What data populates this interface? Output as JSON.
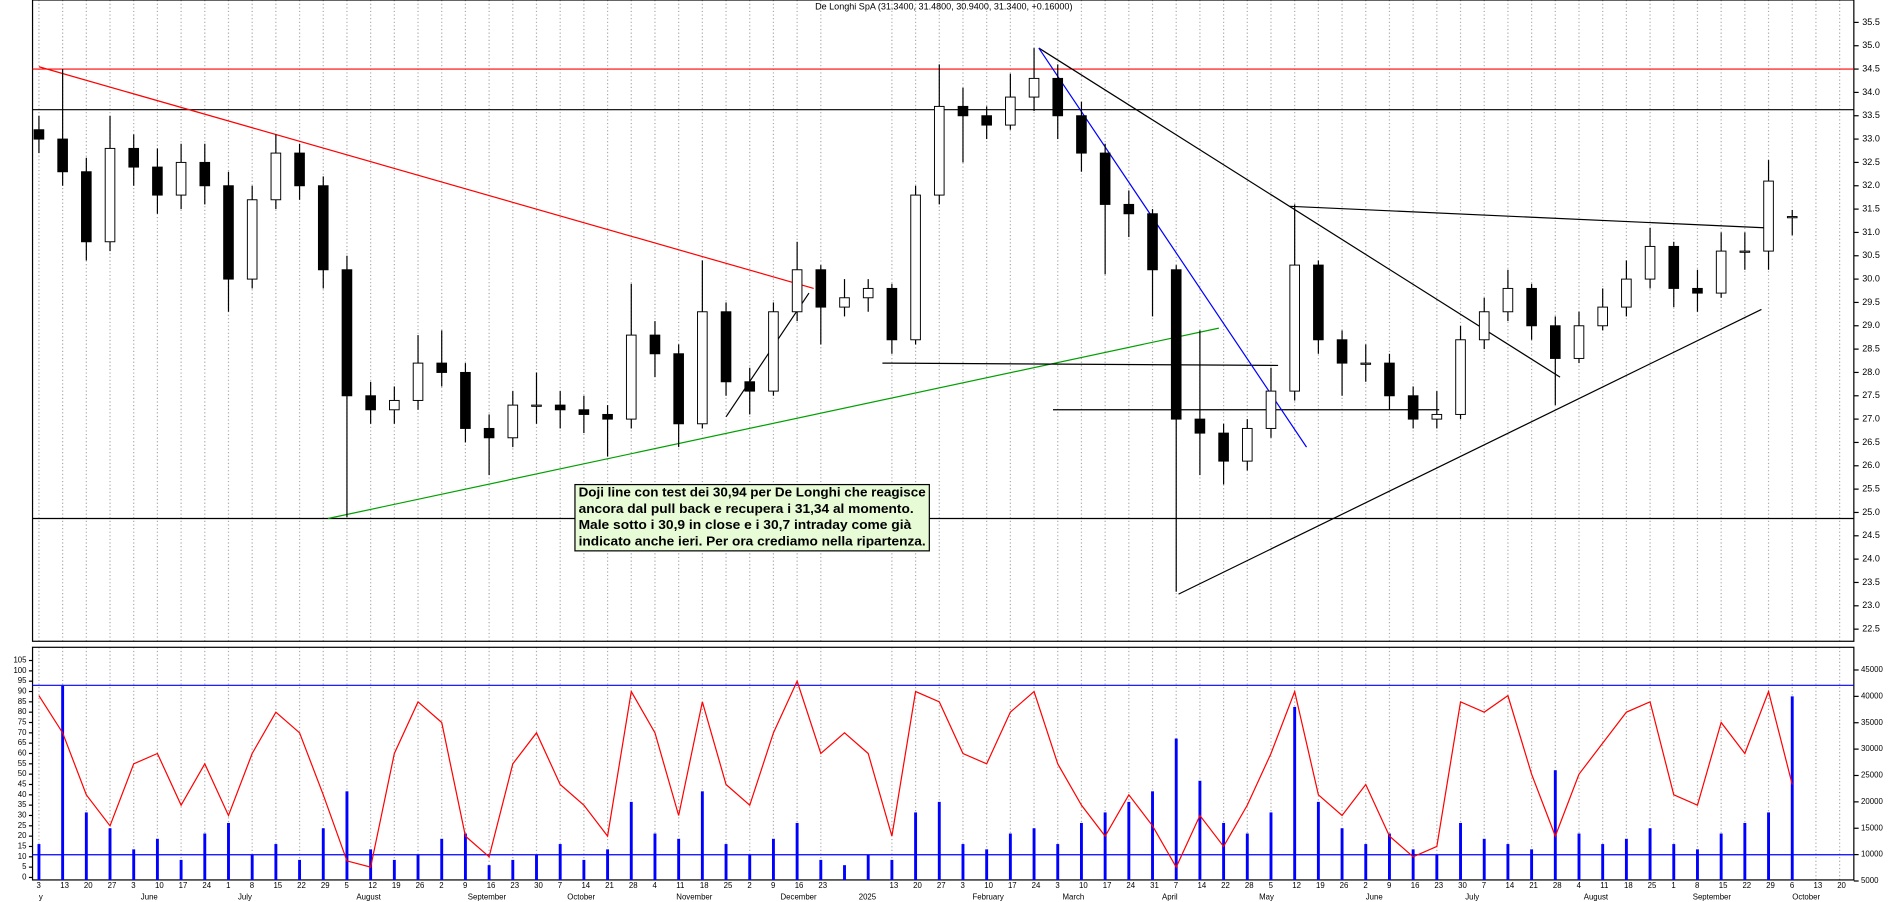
{
  "chart_data": [
    {
      "type": "candlestick",
      "title": "De Longhi SpA (31.3400, 31.4800, 30.9400, 31.3400, +0.16000)",
      "x": [
        0,
        1,
        2,
        3,
        4,
        5,
        6,
        7,
        8,
        9,
        10,
        11,
        12,
        13,
        14,
        15,
        16,
        17,
        18,
        19,
        20,
        21,
        22,
        23,
        24,
        25,
        26,
        27,
        28,
        29,
        30,
        31,
        32,
        33,
        34,
        35,
        36,
        37,
        38,
        39,
        40,
        41,
        42,
        43,
        44,
        45,
        46,
        47,
        48,
        49,
        50,
        51,
        52,
        53,
        54,
        55,
        56,
        57,
        58,
        59,
        60,
        61,
        62,
        63,
        64,
        65,
        66,
        67,
        68,
        69,
        70,
        71,
        72,
        73,
        74
      ],
      "open": [
        33.2,
        33.0,
        32.3,
        30.8,
        32.8,
        32.4,
        31.8,
        32.5,
        32.0,
        30.0,
        31.7,
        32.7,
        32.0,
        30.2,
        27.5,
        27.2,
        27.4,
        28.2,
        28.0,
        26.8,
        26.6,
        27.3,
        27.3,
        27.2,
        27.1,
        27.0,
        28.8,
        28.4,
        26.9,
        29.3,
        27.8,
        27.6,
        29.3,
        30.2,
        29.4,
        29.6,
        29.8,
        28.7,
        31.8,
        33.7,
        33.5,
        33.3,
        33.9,
        34.3,
        33.5,
        32.7,
        31.6,
        31.4,
        30.2,
        27.0,
        26.7,
        26.1,
        26.8,
        27.6,
        30.3,
        28.7,
        28.2,
        28.2,
        27.5,
        27.0,
        27.1,
        28.7,
        29.3,
        29.8,
        29.0,
        28.3,
        29.0,
        29.4,
        30.0,
        30.7,
        29.8,
        29.7,
        30.6,
        30.6,
        31.34
      ],
      "high": [
        33.5,
        34.5,
        32.6,
        33.5,
        33.1,
        32.8,
        32.9,
        32.9,
        32.3,
        32.0,
        33.1,
        32.9,
        32.2,
        30.5,
        27.8,
        27.7,
        28.8,
        28.9,
        28.2,
        27.1,
        27.6,
        28.0,
        27.6,
        27.5,
        27.3,
        29.9,
        29.1,
        28.6,
        30.4,
        29.5,
        28.1,
        29.5,
        30.8,
        30.3,
        30.0,
        30.0,
        29.9,
        32.0,
        34.6,
        34.1,
        33.7,
        34.4,
        34.95,
        34.6,
        33.8,
        32.9,
        31.9,
        31.5,
        30.3,
        28.9,
        26.9,
        27.0,
        28.1,
        31.6,
        30.4,
        28.9,
        28.6,
        28.4,
        27.7,
        27.6,
        29.0,
        29.6,
        30.2,
        29.9,
        29.2,
        29.3,
        29.8,
        30.4,
        31.1,
        30.8,
        30.2,
        31.0,
        31.0,
        32.55,
        31.48
      ],
      "low": [
        32.7,
        32.0,
        30.4,
        30.6,
        32.0,
        31.4,
        31.5,
        31.6,
        29.3,
        29.8,
        31.5,
        31.7,
        29.8,
        24.9,
        26.9,
        26.9,
        27.2,
        27.7,
        26.5,
        25.8,
        26.4,
        26.9,
        26.8,
        26.7,
        26.2,
        26.8,
        27.9,
        26.4,
        26.8,
        27.5,
        27.1,
        27.5,
        29.1,
        28.6,
        29.2,
        29.3,
        28.4,
        28.6,
        31.6,
        32.5,
        33.0,
        33.2,
        33.6,
        33.0,
        32.3,
        30.1,
        30.9,
        29.2,
        23.3,
        25.8,
        25.6,
        25.9,
        26.6,
        27.4,
        28.4,
        27.5,
        27.8,
        27.2,
        26.8,
        26.8,
        27.0,
        28.5,
        29.1,
        28.7,
        27.3,
        28.2,
        28.9,
        29.2,
        29.8,
        29.4,
        29.3,
        29.6,
        30.2,
        30.2,
        30.94
      ],
      "close": [
        33.0,
        32.3,
        30.8,
        32.8,
        32.4,
        31.8,
        32.5,
        32.0,
        30.0,
        31.7,
        32.7,
        32.0,
        30.2,
        27.5,
        27.2,
        27.4,
        28.2,
        28.0,
        26.8,
        26.6,
        27.3,
        27.3,
        27.2,
        27.1,
        27.0,
        28.8,
        28.4,
        26.9,
        29.3,
        27.8,
        27.6,
        29.3,
        30.2,
        29.4,
        29.6,
        29.8,
        28.7,
        31.8,
        33.7,
        33.5,
        33.3,
        33.9,
        34.3,
        33.5,
        32.7,
        31.6,
        31.4,
        30.2,
        27.0,
        26.7,
        26.1,
        26.8,
        27.6,
        30.3,
        28.7,
        28.2,
        28.2,
        27.5,
        27.0,
        27.1,
        28.7,
        29.3,
        29.8,
        29.0,
        28.3,
        29.0,
        29.4,
        30.0,
        30.7,
        29.8,
        29.7,
        30.6,
        30.6,
        32.1,
        31.34
      ],
      "up_color": "#ffffff",
      "down_color": "#000000",
      "xlim": [
        -0.27,
        76.6
      ],
      "ylim": [
        22.24,
        35.98
      ],
      "yticks": [
        22.5,
        {
          "value": 23,
          "label": "23.0"
        },
        23.5,
        {
          "value": 24,
          "label": "24.0"
        },
        24.5,
        {
          "value": 25,
          "label": "25.0"
        },
        25.5,
        {
          "value": 26,
          "label": "26.0"
        },
        26.5,
        {
          "value": 27,
          "label": "27.0"
        },
        27.5,
        {
          "value": 28,
          "label": "28.0"
        },
        28.5,
        {
          "value": 29,
          "label": "29.0"
        },
        29.5,
        {
          "value": 30,
          "label": "30.0"
        },
        30.5,
        {
          "value": 31,
          "label": "31.0"
        },
        31.5,
        {
          "value": 32,
          "label": "32.0"
        },
        32.5,
        {
          "value": 33,
          "label": "33.0"
        },
        33.5,
        {
          "value": 34,
          "label": "34.0"
        },
        34.5,
        {
          "value": 35,
          "label": "35.0"
        },
        35.5
      ],
      "hlines": [
        {
          "value": 34.5,
          "color": "#ff0000"
        },
        {
          "value": 33.63,
          "color": "#000000"
        },
        {
          "value": 24.87,
          "color": "#000000"
        }
      ],
      "trendlines": [
        {
          "x": [
            0,
            32.7
          ],
          "y": [
            34.55,
            29.8
          ],
          "color": "#ff0000"
        },
        {
          "x": [
            12.2,
            49.8
          ],
          "y": [
            24.87,
            28.95
          ],
          "color": "#00a000"
        },
        {
          "x": [
            29.0,
            32.5
          ],
          "y": [
            27.05,
            29.7
          ],
          "color": "#000000"
        },
        {
          "x": [
            35.6,
            52.3
          ],
          "y": [
            28.2,
            28.15
          ],
          "color": "#000000"
        },
        {
          "x": [
            42.8,
            59.1
          ],
          "y": [
            27.2,
            27.2
          ],
          "color": "#000000"
        },
        {
          "x": [
            42.2,
            64.2
          ],
          "y": [
            34.95,
            27.9
          ],
          "color": "#000000"
        },
        {
          "x": [
            42.2,
            53.5
          ],
          "y": [
            34.95,
            26.4
          ],
          "color": "#0000ff"
        },
        {
          "x": [
            52.8,
            72.8
          ],
          "y": [
            31.56,
            31.1
          ],
          "color": "#000000"
        },
        {
          "x": [
            48.1,
            72.7
          ],
          "y": [
            23.25,
            29.35
          ],
          "color": "#000000"
        }
      ],
      "annotation": [
        "Doji line con test dei 30,94 per De Longhi che reagisce",
        "ancora dal pull back e recupera i 31,34 al momento.",
        "Male sotto i 30,9 in close e i 30,7 intraday come già",
        "indicato anche ieri. Per ora crediamo nella ripartenza."
      ]
    },
    {
      "type": "line",
      "x": [
        0,
        1,
        2,
        3,
        4,
        5,
        6,
        7,
        8,
        9,
        10,
        11,
        12,
        13,
        14,
        15,
        16,
        17,
        18,
        19,
        20,
        21,
        22,
        23,
        24,
        25,
        26,
        27,
        28,
        29,
        30,
        31,
        32,
        33,
        34,
        35,
        36,
        37,
        38,
        39,
        40,
        41,
        42,
        43,
        44,
        45,
        46,
        47,
        48,
        49,
        50,
        51,
        52,
        53,
        54,
        55,
        56,
        57,
        58,
        59,
        60,
        61,
        62,
        63,
        64,
        65,
        66,
        67,
        68,
        69,
        70,
        71,
        72,
        73,
        74
      ],
      "values": [
        88,
        70,
        40,
        25,
        55,
        60,
        35,
        55,
        30,
        60,
        80,
        70,
        40,
        8,
        5,
        60,
        85,
        75,
        20,
        10,
        55,
        70,
        45,
        35,
        20,
        90,
        70,
        30,
        85,
        45,
        35,
        70,
        95,
        60,
        70,
        60,
        20,
        90,
        85,
        60,
        55,
        80,
        90,
        55,
        35,
        20,
        40,
        25,
        5,
        30,
        15,
        35,
        60,
        90,
        40,
        30,
        45,
        20,
        10,
        15,
        85,
        80,
        88,
        50,
        20,
        50,
        65,
        80,
        85,
        40,
        35,
        75,
        60,
        90,
        45
      ],
      "color": "#ff0000",
      "bars": {
        "axis": "y2",
        "color": "#0000ff",
        "values": [
          12000,
          42000,
          18000,
          15000,
          11000,
          13000,
          9000,
          14000,
          16000,
          10000,
          12000,
          9000,
          15000,
          22000,
          11000,
          9000,
          10000,
          13000,
          14000,
          8000,
          9000,
          10000,
          12000,
          9000,
          11000,
          20000,
          14000,
          13000,
          22000,
          12000,
          10000,
          13000,
          16000,
          9000,
          8000,
          10000,
          9000,
          18000,
          20000,
          12000,
          11000,
          14000,
          15000,
          12000,
          16000,
          18000,
          20000,
          22000,
          32000,
          24000,
          16000,
          14000,
          18000,
          38000,
          20000,
          15000,
          12000,
          14000,
          11000,
          10000,
          16000,
          13000,
          12000,
          11000,
          26000,
          14000,
          12000,
          13000,
          15000,
          12000,
          11000,
          14000,
          16000,
          18000,
          40000
        ]
      },
      "levels": [
        93,
        11
      ],
      "level_color": "#0000ff",
      "xlim": [
        -0.27,
        76.6
      ],
      "ylim": [
        -1.2,
        111.4
      ],
      "yticks": [
        0,
        5,
        10,
        15,
        20,
        25,
        30,
        35,
        40,
        45,
        50,
        55,
        60,
        65,
        70,
        75,
        80,
        85,
        90,
        95,
        100,
        105
      ],
      "y2lim": [
        5200,
        49300
      ],
      "y2ticks": [
        5000,
        10000,
        15000,
        20000,
        25000,
        30000,
        35000,
        40000,
        45000
      ],
      "grid": true,
      "xticks": [
        {
          "value": 0,
          "label": "3"
        },
        {
          "value": 1,
          "label": "13"
        },
        {
          "value": 2,
          "label": "20"
        },
        {
          "value": 3,
          "label": "27"
        },
        {
          "value": 4,
          "label": "3"
        },
        {
          "value": 5,
          "label": "10"
        },
        {
          "value": 6,
          "label": "17"
        },
        {
          "value": 7,
          "label": "24"
        },
        {
          "value": 8,
          "label": "1"
        },
        {
          "value": 9,
          "label": "8"
        },
        {
          "value": 10,
          "label": "15"
        },
        {
          "value": 11,
          "label": "22"
        },
        {
          "value": 12,
          "label": "29"
        },
        {
          "value": 13,
          "label": "5"
        },
        {
          "value": 14,
          "label": "12"
        },
        {
          "value": 15,
          "label": "19"
        },
        {
          "value": 16,
          "label": "26"
        },
        {
          "value": 17,
          "label": "2"
        },
        {
          "value": 18,
          "label": "9"
        },
        {
          "value": 19,
          "label": "16"
        },
        {
          "value": 20,
          "label": "23"
        },
        {
          "value": 21,
          "label": "30"
        },
        {
          "value": 22,
          "label": "7"
        },
        {
          "value": 23,
          "label": "14"
        },
        {
          "value": 24,
          "label": "21"
        },
        {
          "value": 25,
          "label": "28"
        },
        {
          "value": 26,
          "label": "4"
        },
        {
          "value": 27,
          "label": "11"
        },
        {
          "value": 28,
          "label": "18"
        },
        {
          "value": 29,
          "label": "25"
        },
        {
          "value": 30,
          "label": "2"
        },
        {
          "value": 31,
          "label": "9"
        },
        {
          "value": 32,
          "label": "16"
        },
        {
          "value": 33,
          "label": "23"
        },
        {
          "value": 36,
          "label": "13"
        },
        {
          "value": 37,
          "label": "20"
        },
        {
          "value": 38,
          "label": "27"
        },
        {
          "value": 39,
          "label": "3"
        },
        {
          "value": 40,
          "label": "10"
        },
        {
          "value": 41,
          "label": "17"
        },
        {
          "value": 42,
          "label": "24"
        },
        {
          "value": 43,
          "label": "3"
        },
        {
          "value": 44,
          "label": "10"
        },
        {
          "value": 45,
          "label": "17"
        },
        {
          "value": 46,
          "label": "24"
        },
        {
          "value": 47,
          "label": "31"
        },
        {
          "value": 48,
          "label": "7"
        },
        {
          "value": 49,
          "label": "14"
        },
        {
          "value": 50,
          "label": "22"
        },
        {
          "value": 51,
          "label": "28"
        },
        {
          "value": 52,
          "label": "5"
        },
        {
          "value": 53,
          "label": "12"
        },
        {
          "value": 54,
          "label": "19"
        },
        {
          "value": 55,
          "label": "26"
        },
        {
          "value": 56,
          "label": "2"
        },
        {
          "value": 57,
          "label": "9"
        },
        {
          "value": 58,
          "label": "16"
        },
        {
          "value": 59,
          "label": "23"
        },
        {
          "value": 60,
          "label": "30"
        },
        {
          "value": 61,
          "label": "7"
        },
        {
          "value": 62,
          "label": "14"
        },
        {
          "value": 63,
          "label": "21"
        },
        {
          "value": 64,
          "label": "28"
        },
        {
          "value": 65,
          "label": "4"
        },
        {
          "value": 66,
          "label": "11"
        },
        {
          "value": 67,
          "label": "18"
        },
        {
          "value": 68,
          "label": "25"
        },
        {
          "value": 69,
          "label": "1"
        },
        {
          "value": 70,
          "label": "8"
        },
        {
          "value": 71,
          "label": "15"
        },
        {
          "value": 72,
          "label": "22"
        },
        {
          "value": 73,
          "label": "29"
        },
        {
          "value": 74,
          "label": "6"
        },
        {
          "value": 75,
          "label": "13"
        },
        {
          "value": 76,
          "label": "20"
        }
      ],
      "xticks_major": [
        {
          "value": 0,
          "label": "y"
        },
        {
          "value": 4.3,
          "label": "June"
        },
        {
          "value": 8.4,
          "label": "July"
        },
        {
          "value": 13.4,
          "label": "August"
        },
        {
          "value": 18.1,
          "label": "September"
        },
        {
          "value": 22.3,
          "label": "October"
        },
        {
          "value": 26.9,
          "label": "November"
        },
        {
          "value": 31.3,
          "label": "December"
        },
        {
          "value": 34.6,
          "label": "2025"
        },
        {
          "value": 39.4,
          "label": "February"
        },
        {
          "value": 43.2,
          "label": "March"
        },
        {
          "value": 47.4,
          "label": "April"
        },
        {
          "value": 51.5,
          "label": "May"
        },
        {
          "value": 56.0,
          "label": "June"
        },
        {
          "value": 60.2,
          "label": "July"
        },
        {
          "value": 65.2,
          "label": "August"
        },
        {
          "value": 69.8,
          "label": "September"
        },
        {
          "value": 74.0,
          "label": "October"
        }
      ]
    }
  ]
}
